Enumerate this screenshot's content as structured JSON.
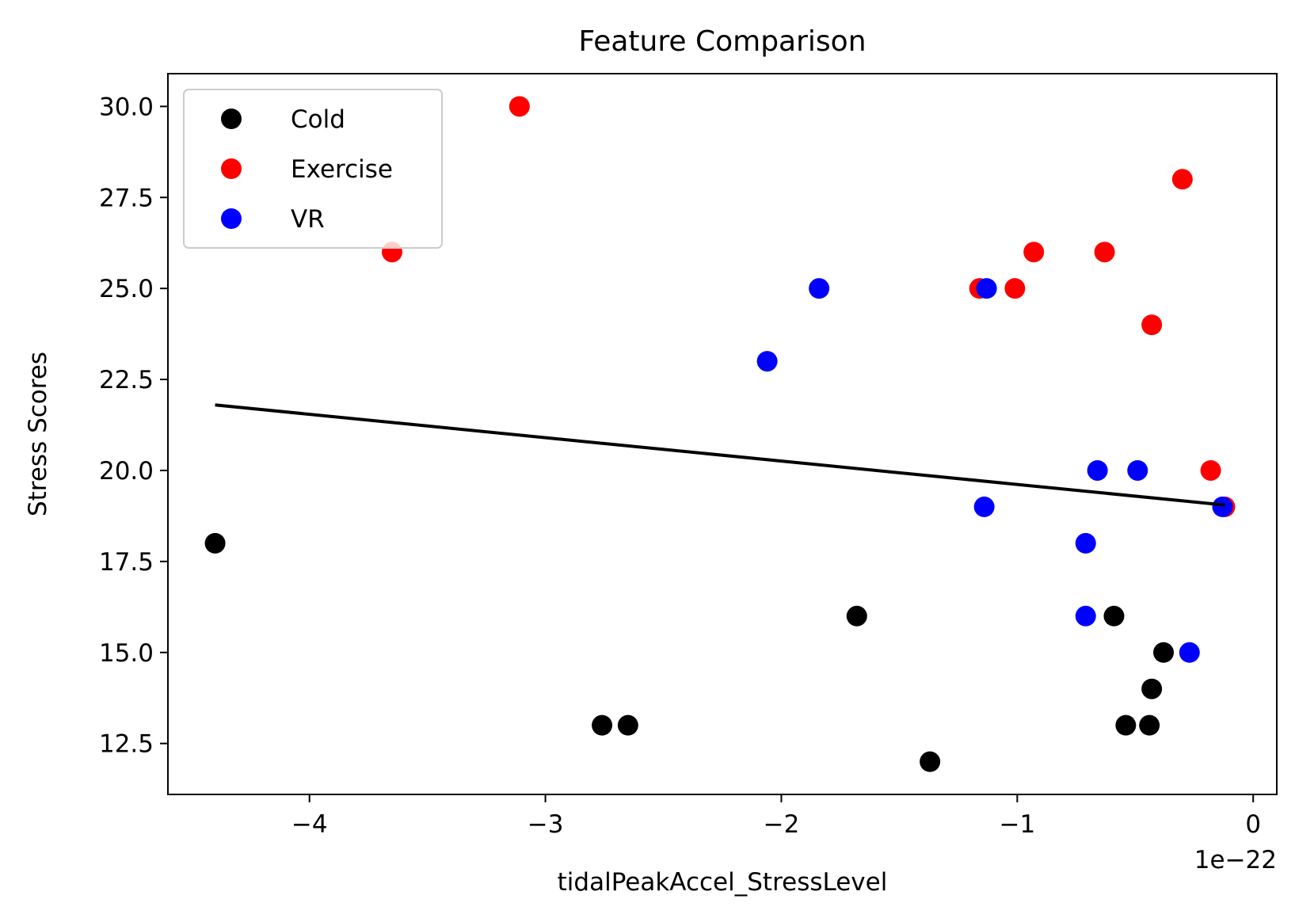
{
  "chart_data": {
    "type": "scatter",
    "title": "Feature Comparison",
    "xlabel": "tidalPeakAccel_StressLevel",
    "ylabel": "Stress Scores",
    "x_offset_text": "1e−22",
    "xlim": [
      -4.6,
      0.1
    ],
    "ylim": [
      11.1,
      30.9
    ],
    "x_ticks": [
      -4,
      -3,
      -2,
      -1,
      0
    ],
    "x_tick_labels": [
      "−4",
      "−3",
      "−2",
      "−1",
      "0"
    ],
    "y_ticks": [
      12.5,
      15.0,
      17.5,
      20.0,
      22.5,
      25.0,
      27.5,
      30.0
    ],
    "y_tick_labels": [
      "12.5",
      "15.0",
      "17.5",
      "20.0",
      "22.5",
      "25.0",
      "27.5",
      "30.0"
    ],
    "grid": false,
    "legend_position": "top-left",
    "series": [
      {
        "name": "Cold",
        "color": "#000000",
        "points": [
          [
            -4.4,
            18
          ],
          [
            -2.76,
            13
          ],
          [
            -2.65,
            13
          ],
          [
            -1.68,
            16
          ],
          [
            -1.37,
            12
          ],
          [
            -0.59,
            16
          ],
          [
            -0.54,
            13
          ],
          [
            -0.44,
            13
          ],
          [
            -0.43,
            14
          ],
          [
            -0.38,
            15
          ]
        ]
      },
      {
        "name": "Exercise",
        "color": "#ff0000",
        "points": [
          [
            -3.65,
            26
          ],
          [
            -3.11,
            30
          ],
          [
            -1.16,
            25
          ],
          [
            -1.01,
            25
          ],
          [
            -0.93,
            26
          ],
          [
            -0.63,
            26
          ],
          [
            -0.43,
            24
          ],
          [
            -0.3,
            28
          ],
          [
            -0.18,
            20
          ],
          [
            -0.12,
            19
          ]
        ]
      },
      {
        "name": "VR",
        "color": "#0000ff",
        "points": [
          [
            -2.06,
            23
          ],
          [
            -1.84,
            25
          ],
          [
            -1.14,
            19
          ],
          [
            -1.13,
            25
          ],
          [
            -0.71,
            18
          ],
          [
            -0.71,
            16
          ],
          [
            -0.66,
            20
          ],
          [
            -0.49,
            20
          ],
          [
            -0.27,
            15
          ],
          [
            -0.13,
            19
          ]
        ]
      }
    ],
    "trend_line": {
      "color": "#000000",
      "points": [
        [
          -4.4,
          21.8
        ],
        [
          -0.12,
          19.05
        ]
      ]
    }
  }
}
